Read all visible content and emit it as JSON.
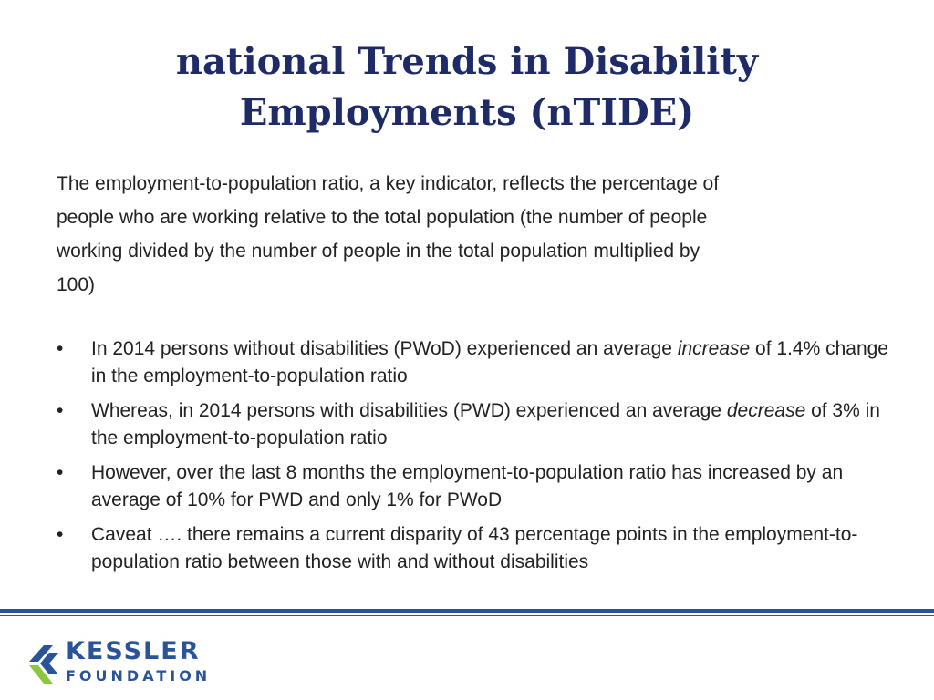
{
  "slide": {
    "title_line1": "national Trends in Disability",
    "title_line2": "Employments (nTIDE)",
    "intro_line1": "The employment-to-population ratio, a key indicator, reflects the percentage of",
    "intro_line2": "people who are working relative to the total population (the number of people",
    "intro_line3": "working divided by the number of people in the total population multiplied by",
    "intro_line4": "100)",
    "bullet_symbol": "•",
    "bullets": [
      {
        "before": "In 2014 persons without disabilities (PWoD) experienced an average ",
        "emphasis": "increase",
        "after": " of 1.4% change in the employment-to-population ratio"
      },
      {
        "before": "Whereas, in 2014 persons with disabilities (PWD) experienced an average ",
        "emphasis": "decrease",
        "after": " of 3% in the employment-to-population ratio"
      },
      {
        "text": "However, over the last 8 months the employment-to-population ratio has increased by an average of 10% for PWD and only 1% for PWoD"
      },
      {
        "text": "Caveat …. there remains a current disparity of 43 percentage points in the employment-to-population ratio between those with and without disabilities"
      }
    ]
  },
  "footer": {
    "logo_word1": "KESSLER",
    "logo_word2": "FOUNDATION"
  },
  "colors": {
    "title": "#1f2b66",
    "accent_blue": "#2a5398",
    "logo_green": "#8dc63f",
    "body_text": "#222222"
  },
  "icons": {
    "logo_mark": "kessler-k-mark-icon"
  }
}
